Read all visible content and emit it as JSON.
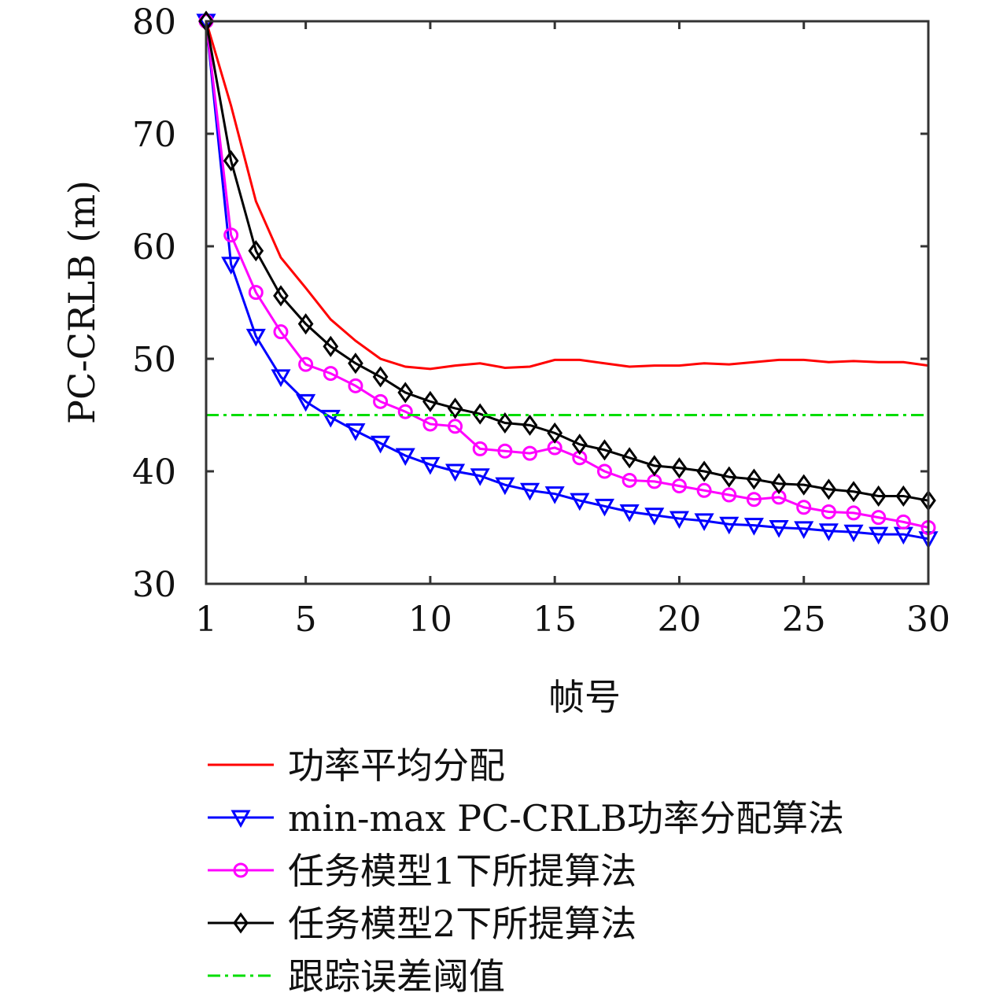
{
  "chart_data": {
    "type": "line",
    "title": "",
    "xlabel": "帧号",
    "ylabel": "PC-CRLB (m)",
    "xlim": [
      1,
      30
    ],
    "ylim": [
      30,
      80
    ],
    "xticks": [
      1,
      5,
      10,
      15,
      20,
      25,
      30
    ],
    "yticks": [
      30,
      40,
      50,
      60,
      70,
      80
    ],
    "grid": false,
    "legend_position": "below",
    "x": [
      1,
      2,
      3,
      4,
      5,
      6,
      7,
      8,
      9,
      10,
      11,
      12,
      13,
      14,
      15,
      16,
      17,
      18,
      19,
      20,
      21,
      22,
      23,
      24,
      25,
      26,
      27,
      28,
      29,
      30
    ],
    "series": [
      {
        "name": "功率平均分配",
        "color": "#ff0000",
        "marker": "none",
        "style": "solid",
        "values": [
          80,
          72.5,
          64,
          59,
          56.3,
          53.5,
          51.6,
          50,
          49.3,
          49.1,
          49.4,
          49.6,
          49.2,
          49.3,
          49.9,
          49.9,
          49.6,
          49.3,
          49.4,
          49.4,
          49.6,
          49.5,
          49.7,
          49.9,
          49.9,
          49.7,
          49.8,
          49.7,
          49.7,
          49.4
        ]
      },
      {
        "name": "min-max PC-CRLB功率分配算法",
        "color": "#0000ff",
        "marker": "triangle-down",
        "style": "solid",
        "values": [
          80,
          58.4,
          52,
          48.4,
          46.2,
          44.8,
          43.6,
          42.5,
          41.4,
          40.6,
          40,
          39.6,
          38.8,
          38.3,
          38,
          37.4,
          36.9,
          36.4,
          36.1,
          35.8,
          35.6,
          35.3,
          35.2,
          35,
          34.9,
          34.7,
          34.6,
          34.4,
          34.4,
          34
        ]
      },
      {
        "name": "任务模型1下所提算法",
        "color": "#ff00ff",
        "marker": "circle",
        "style": "solid",
        "values": [
          80,
          61,
          55.9,
          52.4,
          49.5,
          48.7,
          47.6,
          46.2,
          45.3,
          44.2,
          44,
          42,
          41.8,
          41.6,
          42.1,
          41.2,
          40,
          39.2,
          39.1,
          38.7,
          38.3,
          37.9,
          37.5,
          37.7,
          36.8,
          36.4,
          36.3,
          35.9,
          35.5,
          35
        ]
      },
      {
        "name": "任务模型2下所提算法",
        "color": "#000000",
        "marker": "diamond",
        "style": "solid",
        "values": [
          80,
          67.6,
          59.6,
          55.6,
          53.1,
          51.1,
          49.6,
          48.4,
          47,
          46.2,
          45.6,
          45.1,
          44.3,
          44.1,
          43.4,
          42.4,
          41.9,
          41.2,
          40.5,
          40.3,
          40,
          39.5,
          39.3,
          38.9,
          38.8,
          38.4,
          38.2,
          37.8,
          37.8,
          37.4
        ]
      },
      {
        "name": "跟踪误差阈值",
        "color": "#00dd00",
        "marker": "none",
        "style": "dashdot",
        "values": [
          45,
          45,
          45,
          45,
          45,
          45,
          45,
          45,
          45,
          45,
          45,
          45,
          45,
          45,
          45,
          45,
          45,
          45,
          45,
          45,
          45,
          45,
          45,
          45,
          45,
          45,
          45,
          45,
          45,
          45
        ]
      }
    ]
  }
}
